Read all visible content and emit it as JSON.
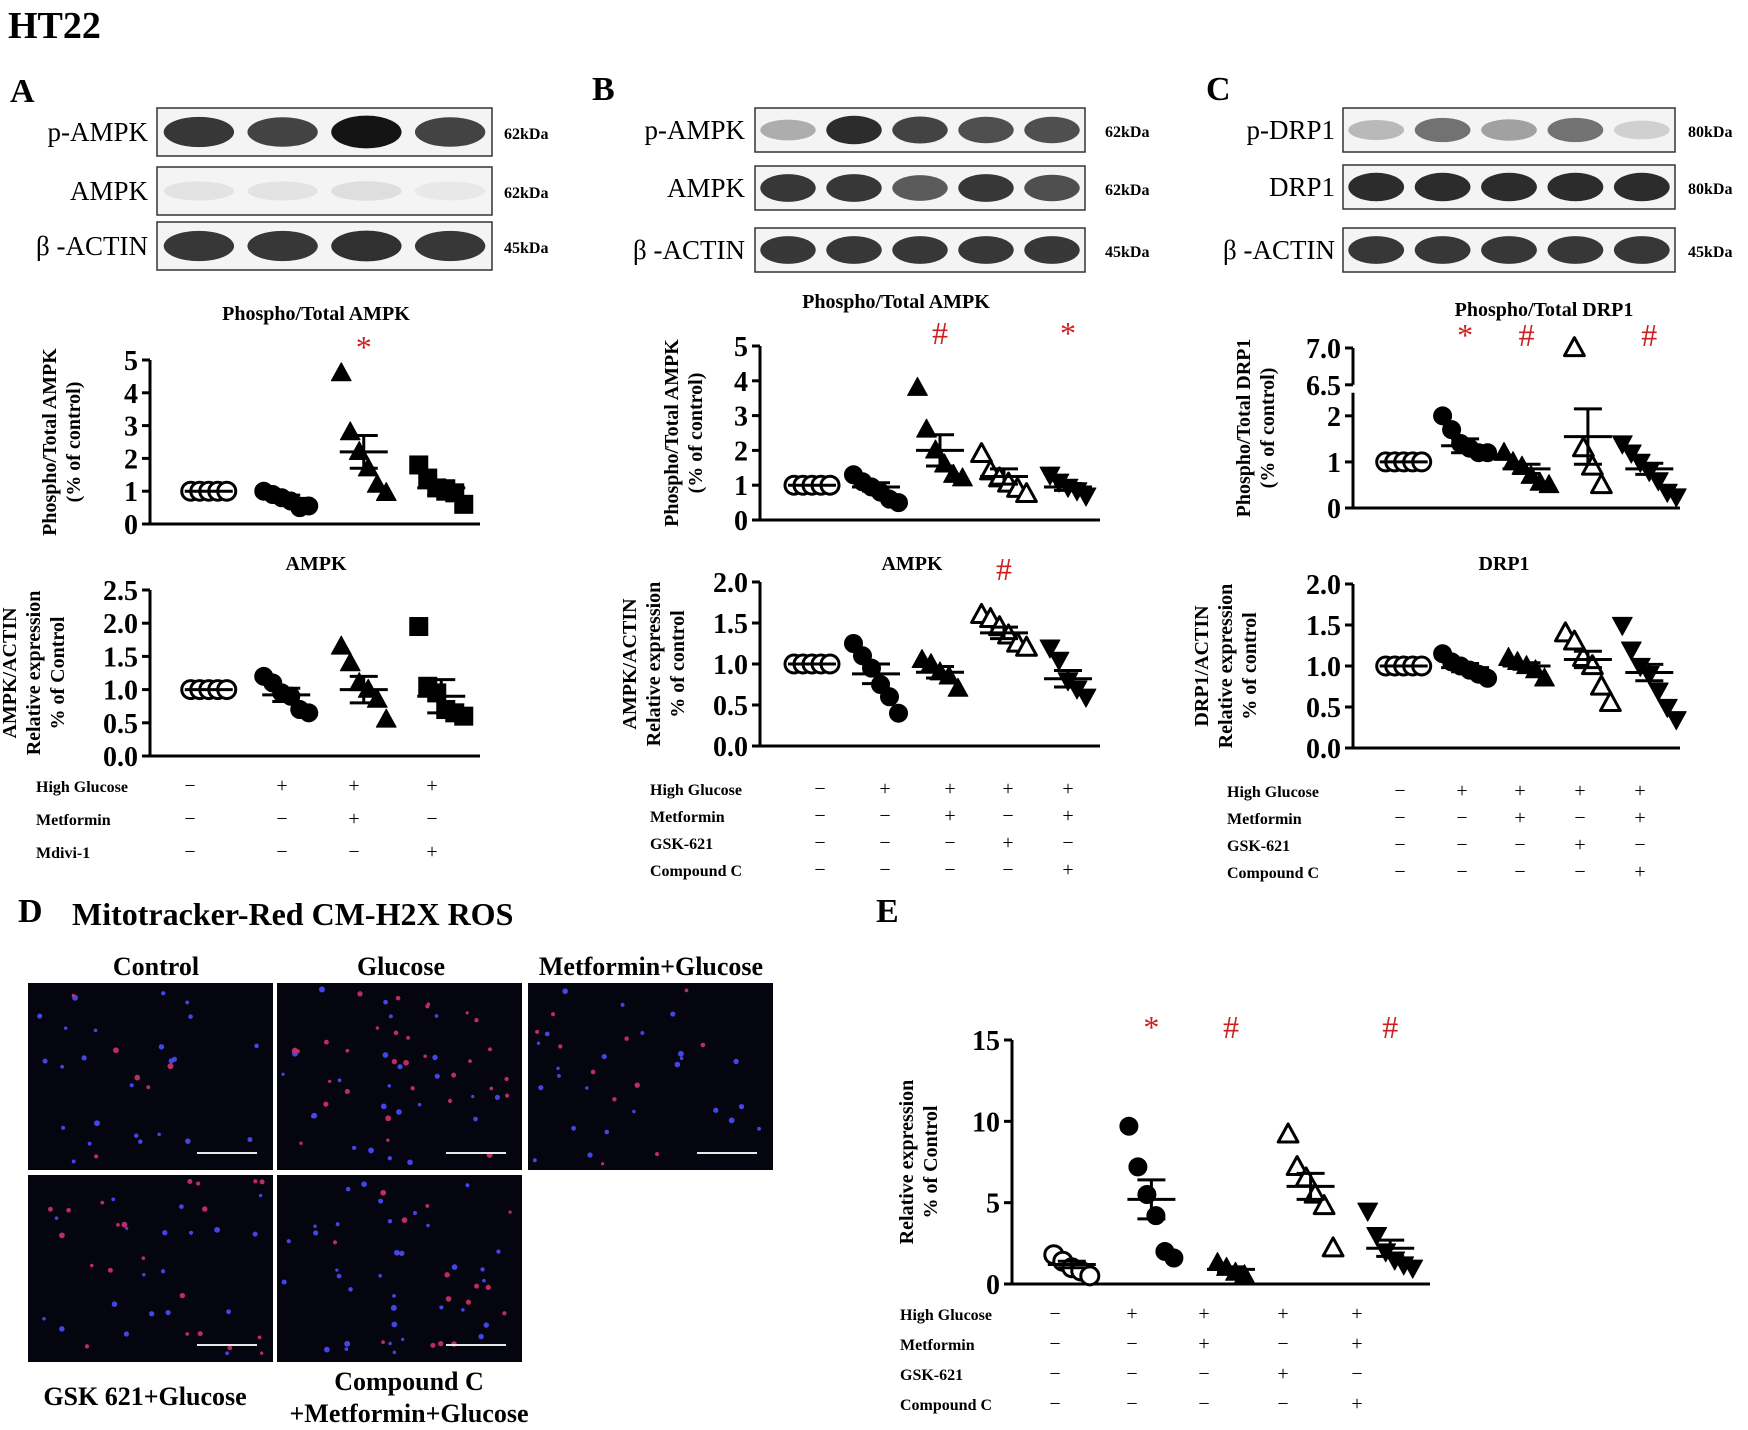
{
  "figure_title": "HT22",
  "colors": {
    "significance": "#cc1f1f",
    "axis": "#000000",
    "micrograph_bg": "#050510",
    "nucleus": "#4a4dff",
    "mito": "#d2326e",
    "scalebar": "#e8e8e8"
  },
  "panels": {
    "A": {
      "letter": "A",
      "blot": {
        "bands": [
          {
            "label": "p-AMPK",
            "kda": "62kDa",
            "intensity": [
              0.85,
              0.8,
              1.0,
              0.8
            ]
          },
          {
            "label": "AMPK",
            "kda": "62kDa",
            "intensity": [
              0.12,
              0.12,
              0.14,
              0.1
            ]
          },
          {
            "label": "β -ACTIN",
            "kda": "45kDa",
            "intensity": [
              0.85,
              0.85,
              0.88,
              0.85
            ]
          }
        ]
      },
      "conditions": {
        "rows": [
          "High Glucose",
          "Metformin",
          "Mdivi-1"
        ],
        "values": [
          [
            "−",
            "+",
            "+",
            "+"
          ],
          [
            "−",
            "−",
            "+",
            "−"
          ],
          [
            "−",
            "−",
            "−",
            "+"
          ]
        ]
      }
    },
    "B": {
      "letter": "B",
      "blot": {
        "bands": [
          {
            "label": "p-AMPK",
            "kda": "62kDa",
            "intensity": [
              0.35,
              0.9,
              0.8,
              0.75,
              0.75
            ]
          },
          {
            "label": "AMPK",
            "kda": "62kDa",
            "intensity": [
              0.85,
              0.85,
              0.7,
              0.85,
              0.75
            ]
          },
          {
            "label": "β -ACTIN",
            "kda": "45kDa",
            "intensity": [
              0.85,
              0.85,
              0.85,
              0.85,
              0.85
            ]
          }
        ]
      },
      "conditions": {
        "rows": [
          "High Glucose",
          "Metformin",
          "GSK-621",
          "Compound C"
        ],
        "values": [
          [
            "−",
            "+",
            "+",
            "+",
            "+"
          ],
          [
            "−",
            "−",
            "+",
            "−",
            "+"
          ],
          [
            "−",
            "−",
            "−",
            "+",
            "−"
          ],
          [
            "−",
            "−",
            "−",
            "−",
            "+"
          ]
        ]
      }
    },
    "C": {
      "letter": "C",
      "blot": {
        "bands": [
          {
            "label": "p-DRP1",
            "kda": "80kDa",
            "intensity": [
              0.3,
              0.6,
              0.4,
              0.6,
              0.2
            ]
          },
          {
            "label": "DRP1",
            "kda": "80kDa",
            "intensity": [
              0.9,
              0.9,
              0.9,
              0.9,
              0.9
            ]
          },
          {
            "label": "β -ACTIN",
            "kda": "45kDa",
            "intensity": [
              0.85,
              0.85,
              0.85,
              0.85,
              0.85
            ]
          }
        ]
      },
      "conditions": {
        "rows": [
          "High Glucose",
          "Metformin",
          "GSK-621",
          "Compound C"
        ],
        "values": [
          [
            "−",
            "+",
            "+",
            "+",
            "+"
          ],
          [
            "−",
            "−",
            "+",
            "−",
            "+"
          ],
          [
            "−",
            "−",
            "−",
            "+",
            "−"
          ],
          [
            "−",
            "−",
            "−",
            "−",
            "+"
          ]
        ]
      }
    },
    "D": {
      "letter": "D",
      "title": "Mitotracker-Red CM-H2X ROS",
      "images": [
        {
          "label": "Control",
          "label_lines": [
            "Control"
          ],
          "density": 30,
          "red": 0.15
        },
        {
          "label": "Glucose",
          "label_lines": [
            "Glucose"
          ],
          "density": 55,
          "red": 0.45
        },
        {
          "label": "Metformin+Glucose",
          "label_lines": [
            "Metformin+Glucose"
          ],
          "density": 35,
          "red": 0.2
        },
        {
          "label": "GSK 621+Glucose",
          "label_lines": [
            "GSK 621+Glucose"
          ],
          "density": 40,
          "red": 0.5
        },
        {
          "label": "Compound C +Metformin+Glucose",
          "label_lines": [
            "Compound C",
            "+Metformin+Glucose"
          ],
          "density": 50,
          "red": 0.2
        }
      ]
    },
    "E": {
      "letter": "E",
      "conditions": {
        "rows": [
          "High Glucose",
          "Metformin",
          "GSK-621",
          "Compound C"
        ],
        "values": [
          [
            "−",
            "+",
            "+",
            "+",
            "+"
          ],
          [
            "−",
            "−",
            "+",
            "−",
            "+"
          ],
          [
            "−",
            "−",
            "−",
            "+",
            "−"
          ],
          [
            "−",
            "−",
            "−",
            "−",
            "+"
          ]
        ]
      }
    }
  },
  "chart_data": [
    {
      "id": "A-phospho",
      "type": "scatter",
      "title": "Phospho/Total AMPK",
      "ylabel": [
        "Phospho/Total AMPK",
        "(% of control)"
      ],
      "ylim": [
        0,
        5
      ],
      "yticks": [
        "0",
        "1",
        "2",
        "3",
        "4",
        "5"
      ],
      "yticks_values": [
        0,
        1,
        2,
        3,
        4,
        5
      ],
      "groups": [
        {
          "marker": "circle-open",
          "mean": 1.0,
          "sem": 0,
          "values": [
            1,
            1,
            1,
            1,
            1
          ],
          "sig": ""
        },
        {
          "marker": "circle-filled",
          "mean": 0.78,
          "sem": 0.1,
          "values": [
            1.0,
            0.9,
            0.8,
            0.7,
            0.5,
            0.55
          ],
          "sig": ""
        },
        {
          "marker": "triangle-up-filled",
          "mean": 2.2,
          "sem": 0.5,
          "values": [
            4.6,
            2.8,
            2.2,
            1.7,
            1.2,
            0.95
          ],
          "sig": "*"
        },
        {
          "marker": "square-filled",
          "mean": 1.1,
          "sem": 0.22,
          "values": [
            1.8,
            1.4,
            1.1,
            1.0,
            0.95,
            0.6
          ],
          "sig": ""
        }
      ]
    },
    {
      "id": "A-total",
      "type": "scatter",
      "title": "AMPK",
      "ylabel": [
        "AMPK/ACTIN",
        "Relative expression",
        "% of Control"
      ],
      "ylim": [
        0,
        2.5
      ],
      "yticks": [
        "0.0",
        "0.5",
        "1.0",
        "1.5",
        "2.0",
        "2.5"
      ],
      "yticks_values": [
        0,
        0.5,
        1,
        1.5,
        2,
        2.5
      ],
      "groups": [
        {
          "marker": "circle-open",
          "mean": 1.0,
          "sem": 0,
          "values": [
            1,
            1,
            1,
            1,
            1
          ],
          "sig": ""
        },
        {
          "marker": "circle-filled",
          "mean": 0.92,
          "sem": 0.1,
          "values": [
            1.2,
            1.1,
            0.95,
            0.9,
            0.7,
            0.65
          ],
          "sig": ""
        },
        {
          "marker": "triangle-up-filled",
          "mean": 1.0,
          "sem": 0.2,
          "values": [
            1.65,
            1.4,
            1.1,
            1.0,
            0.85,
            0.55
          ],
          "sig": ""
        },
        {
          "marker": "square-filled",
          "mean": 0.9,
          "sem": 0.25,
          "values": [
            1.95,
            1.05,
            0.95,
            0.7,
            0.65,
            0.6
          ],
          "sig": ""
        }
      ]
    },
    {
      "id": "B-phospho",
      "type": "scatter",
      "title": "Phospho/Total AMPK",
      "ylabel": [
        "Phospho/Total AMPK",
        "(% of control)"
      ],
      "ylim": [
        0,
        5
      ],
      "yticks": [
        "0",
        "1",
        "2",
        "3",
        "4",
        "5"
      ],
      "yticks_values": [
        0,
        1,
        2,
        3,
        4,
        5
      ],
      "groups": [
        {
          "marker": "circle-open",
          "mean": 1.0,
          "sem": 0,
          "values": [
            1,
            1,
            1,
            1,
            1
          ],
          "sig": ""
        },
        {
          "marker": "circle-filled",
          "mean": 0.95,
          "sem": 0.12,
          "values": [
            1.3,
            1.1,
            0.95,
            0.8,
            0.6,
            0.5
          ],
          "sig": ""
        },
        {
          "marker": "triangle-up-filled",
          "mean": 2.0,
          "sem": 0.45,
          "values": [
            3.8,
            2.6,
            2.0,
            1.6,
            1.3,
            1.2
          ],
          "sig": "#"
        },
        {
          "marker": "triangle-up-open",
          "mean": 1.25,
          "sem": 0.22,
          "values": [
            1.9,
            1.4,
            1.2,
            1.05,
            0.9,
            0.75
          ],
          "sig": ""
        },
        {
          "marker": "triangle-down-filled",
          "mean": 0.95,
          "sem": 0.1,
          "values": [
            1.3,
            1.1,
            0.95,
            0.85,
            0.7
          ],
          "sig": "*"
        }
      ]
    },
    {
      "id": "B-total",
      "type": "scatter",
      "title": "AMPK",
      "ylabel": [
        "AMPK/ACTIN",
        "Relative expression",
        "% of control"
      ],
      "ylim": [
        0,
        2.0
      ],
      "yticks": [
        "0.0",
        "0.5",
        "1.0",
        "1.5",
        "2.0"
      ],
      "yticks_values": [
        0,
        0.5,
        1,
        1.5,
        2
      ],
      "groups": [
        {
          "marker": "circle-open",
          "mean": 1.0,
          "sem": 0,
          "values": [
            1,
            1,
            1,
            1,
            1
          ],
          "sig": ""
        },
        {
          "marker": "circle-filled",
          "mean": 0.88,
          "sem": 0.12,
          "values": [
            1.25,
            1.1,
            0.95,
            0.75,
            0.6,
            0.4
          ],
          "sig": ""
        },
        {
          "marker": "triangle-up-filled",
          "mean": 0.9,
          "sem": 0.07,
          "values": [
            1.05,
            1.0,
            0.9,
            0.85,
            0.7
          ],
          "sig": ""
        },
        {
          "marker": "triangle-up-open",
          "mean": 1.38,
          "sem": 0.07,
          "values": [
            1.6,
            1.55,
            1.45,
            1.35,
            1.25,
            1.2
          ],
          "sig": "#"
        },
        {
          "marker": "triangle-down-filled",
          "mean": 0.82,
          "sem": 0.1,
          "values": [
            1.2,
            1.05,
            0.8,
            0.7,
            0.6
          ],
          "sig": ""
        }
      ]
    },
    {
      "id": "C-phospho",
      "type": "scatter",
      "title": "Phospho/Total DRP1",
      "ylabel": [
        "Phospho/Total DRP1",
        "(% of control)"
      ],
      "ylim": [
        0,
        7.0
      ],
      "axis_break": [
        2.5,
        6.5
      ],
      "yticks": [
        "0",
        "1",
        "2",
        "6.5",
        "7.0"
      ],
      "yticks_values": [
        0,
        1,
        2,
        6.5,
        7.0
      ],
      "groups": [
        {
          "marker": "circle-open",
          "mean": 1.0,
          "sem": 0,
          "values": [
            1,
            1,
            1,
            1,
            1
          ],
          "sig": ""
        },
        {
          "marker": "circle-filled",
          "mean": 1.35,
          "sem": 0.15,
          "values": [
            2.0,
            1.7,
            1.4,
            1.3,
            1.2,
            1.2
          ],
          "sig": "*"
        },
        {
          "marker": "triangle-up-filled",
          "mean": 0.85,
          "sem": 0.1,
          "values": [
            1.2,
            1.0,
            0.9,
            0.7,
            0.55,
            0.5
          ],
          "sig": "#"
        },
        {
          "marker": "triangle-up-open",
          "mean": 1.55,
          "sem": 0.6,
          "values": [
            7.0,
            1.3,
            0.9,
            0.5
          ],
          "sig": ""
        },
        {
          "marker": "triangle-down-filled",
          "mean": 0.85,
          "sem": 0.12,
          "values": [
            1.4,
            1.2,
            1.0,
            0.8,
            0.6,
            0.35,
            0.25
          ],
          "sig": "#"
        }
      ]
    },
    {
      "id": "C-total",
      "type": "scatter",
      "title": "DRP1",
      "ylabel": [
        "DRP1/ACTIN",
        "Relative expression",
        "% of control"
      ],
      "ylim": [
        0,
        2.0
      ],
      "yticks": [
        "0.0",
        "0.5",
        "1.0",
        "1.5",
        "2.0"
      ],
      "yticks_values": [
        0,
        0.5,
        1,
        1.5,
        2
      ],
      "groups": [
        {
          "marker": "circle-open",
          "mean": 1.0,
          "sem": 0,
          "values": [
            1,
            1,
            1,
            1,
            1
          ],
          "sig": ""
        },
        {
          "marker": "circle-filled",
          "mean": 0.98,
          "sem": 0.05,
          "values": [
            1.15,
            1.05,
            1.0,
            0.95,
            0.9,
            0.85
          ],
          "sig": ""
        },
        {
          "marker": "triangle-up-filled",
          "mean": 1.0,
          "sem": 0.04,
          "values": [
            1.1,
            1.05,
            1.0,
            0.95,
            0.85
          ],
          "sig": ""
        },
        {
          "marker": "triangle-up-open",
          "mean": 1.08,
          "sem": 0.1,
          "values": [
            1.4,
            1.3,
            1.1,
            1.0,
            0.75,
            0.55
          ],
          "sig": ""
        },
        {
          "marker": "triangle-down-filled",
          "mean": 0.92,
          "sem": 0.1,
          "values": [
            1.5,
            1.2,
            1.0,
            0.9,
            0.7,
            0.5,
            0.35
          ],
          "sig": ""
        }
      ]
    },
    {
      "id": "E-ros",
      "type": "scatter",
      "title": "",
      "ylabel": [
        "Relative expression",
        "% of Control"
      ],
      "ylim": [
        0,
        15
      ],
      "yticks": [
        "0",
        "5",
        "10",
        "15"
      ],
      "yticks_values": [
        0,
        5,
        10,
        15
      ],
      "groups": [
        {
          "marker": "circle-open",
          "mean": 1.2,
          "sem": 0.2,
          "values": [
            1.8,
            1.4,
            1.0,
            0.8,
            0.5
          ],
          "sig": ""
        },
        {
          "marker": "circle-filled",
          "mean": 5.2,
          "sem": 1.2,
          "values": [
            9.7,
            7.2,
            5.5,
            4.2,
            2.0,
            1.6
          ],
          "sig": "*"
        },
        {
          "marker": "triangle-up-filled",
          "mean": 0.9,
          "sem": 0.15,
          "values": [
            1.3,
            1.0,
            0.7,
            0.55
          ],
          "sig": "#"
        },
        {
          "marker": "triangle-up-open",
          "mean": 6.0,
          "sem": 0.8,
          "values": [
            9.2,
            7.2,
            6.5,
            5.5,
            4.8,
            2.2
          ],
          "sig": ""
        },
        {
          "marker": "triangle-down-filled",
          "mean": 2.2,
          "sem": 0.5,
          "values": [
            4.5,
            3.0,
            2.0,
            1.5,
            1.2,
            1.0
          ],
          "sig": "#"
        }
      ]
    }
  ]
}
